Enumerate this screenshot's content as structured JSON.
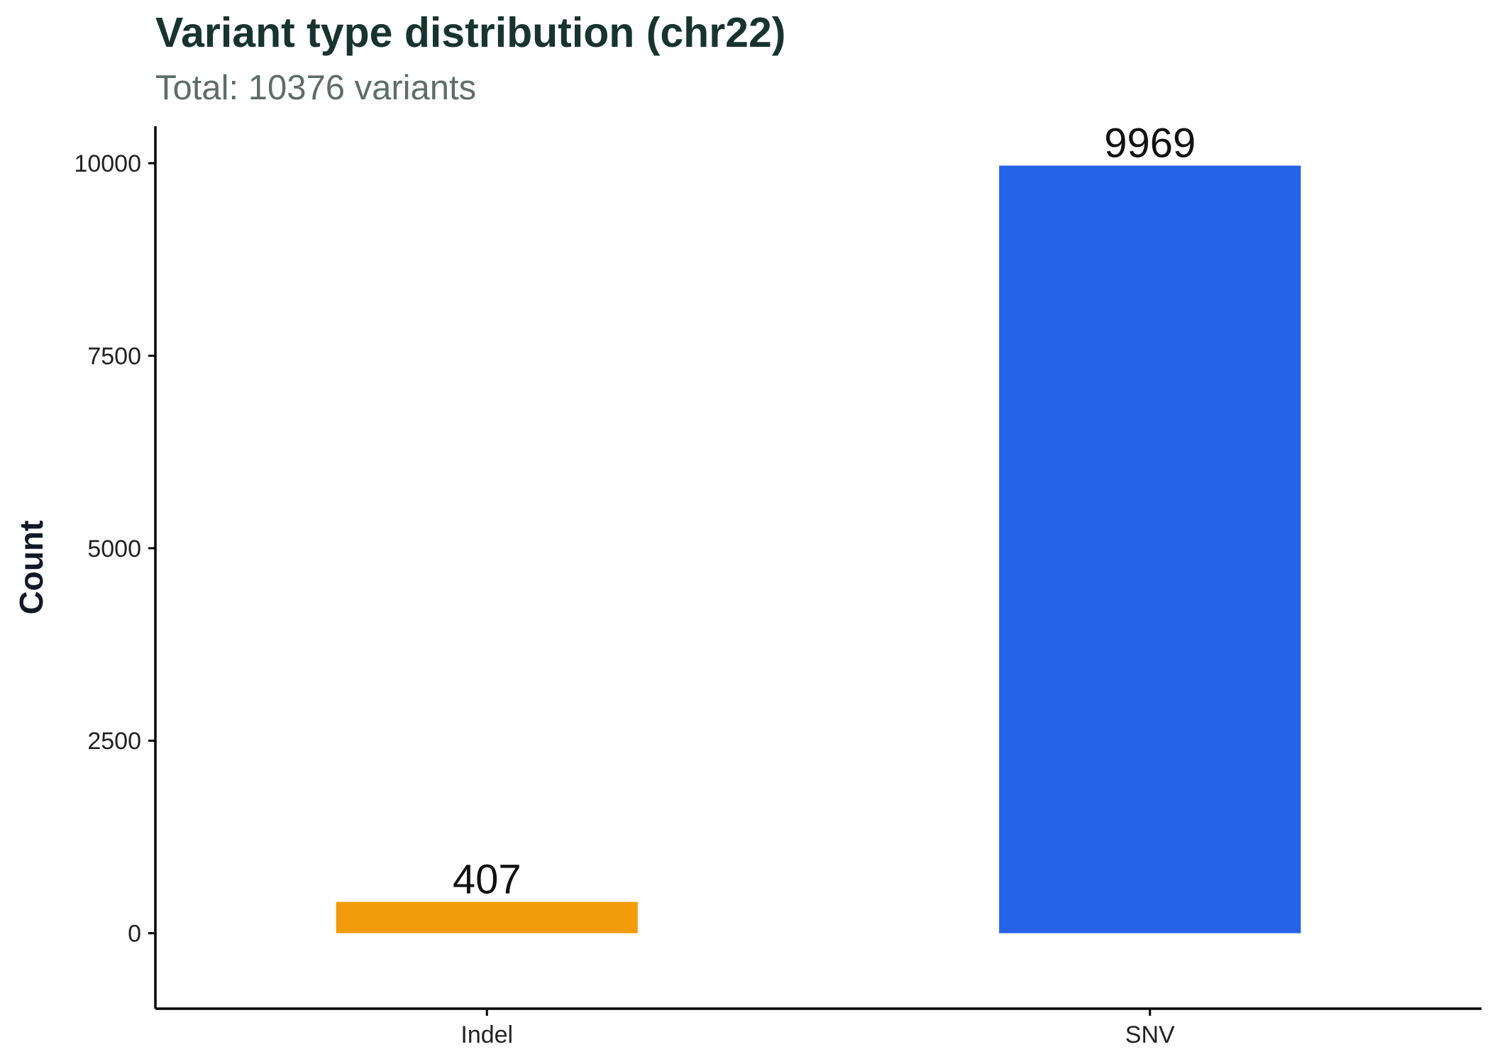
{
  "chart_data": {
    "type": "bar",
    "title": "Variant type distribution (chr22)",
    "subtitle": "Total: 10376 variants",
    "xlabel": "",
    "ylabel": "Count",
    "categories": [
      "Indel",
      "SNV"
    ],
    "values": [
      407,
      9969
    ],
    "data_labels": [
      "407",
      "9969"
    ],
    "bar_colors": [
      "#f39c0b",
      "#2563e8"
    ],
    "ylim": [
      -980,
      10480
    ],
    "y_ticks": [
      0,
      2500,
      5000,
      7500,
      10000
    ],
    "y_tick_labels": [
      "0",
      "2500",
      "5000",
      "7500",
      "10000"
    ],
    "grid": false,
    "legend": "none"
  }
}
